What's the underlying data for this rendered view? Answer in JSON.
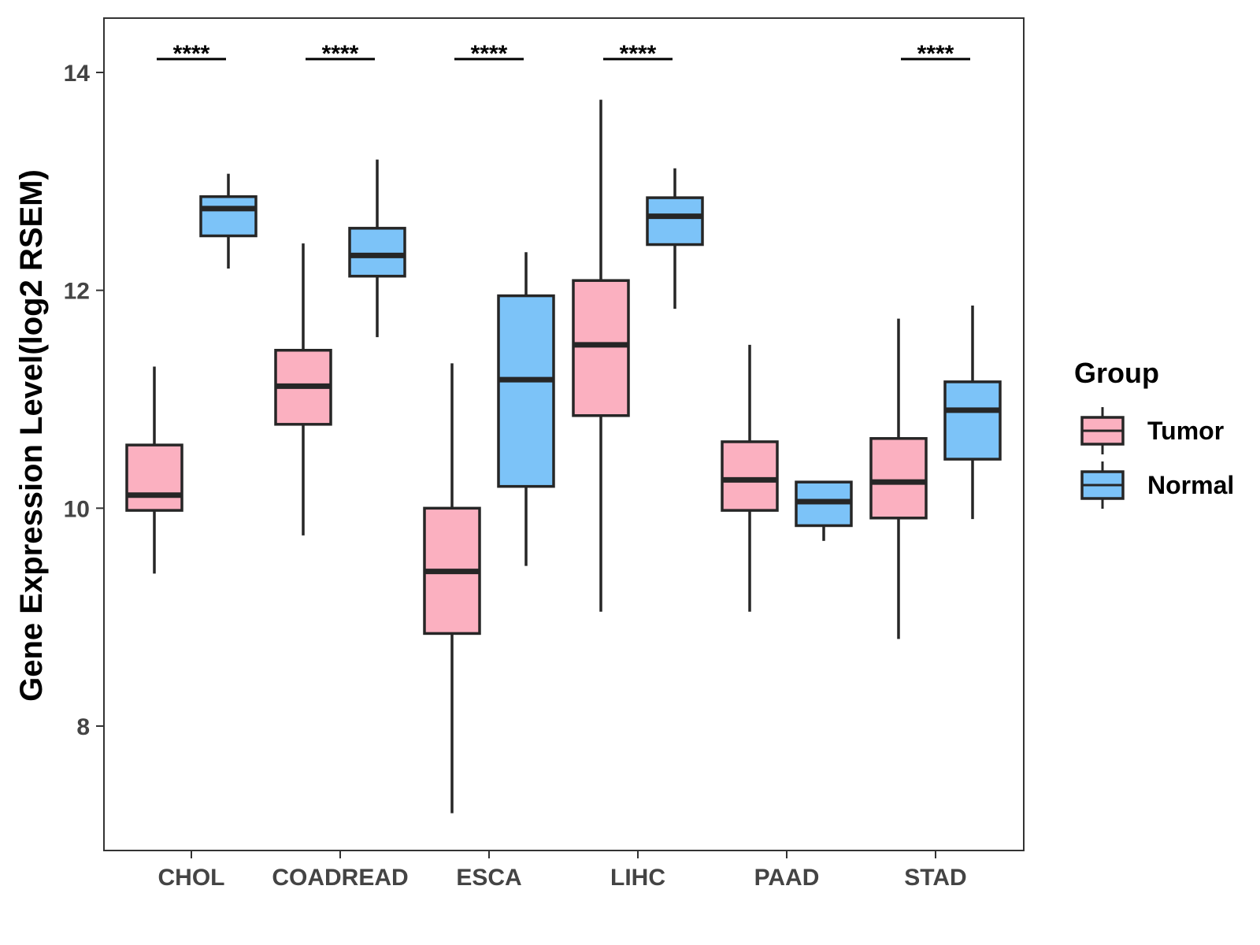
{
  "chart_data": {
    "type": "boxplot",
    "title": "",
    "xlabel": "",
    "ylabel": "Gene Expression Level(log2 RSEM)",
    "ylim": [
      6.9,
      14.5
    ],
    "yticks": [
      8,
      10,
      12,
      14
    ],
    "categories": [
      "CHOL",
      "COADREAD",
      "ESCA",
      "LIHC",
      "PAAD",
      "STAD"
    ],
    "grid": false,
    "legend": {
      "title": "Group",
      "placement": "right",
      "entries": [
        {
          "name": "Tumor",
          "color": "#fbb0c0"
        },
        {
          "name": "Normal",
          "color": "#7cc3f8"
        }
      ]
    },
    "series": [
      {
        "name": "Tumor",
        "color": "#fbb0c0",
        "boxes": [
          {
            "category": "CHOL",
            "min": 9.4,
            "q1": 9.98,
            "median": 10.12,
            "q3": 10.58,
            "max": 11.3
          },
          {
            "category": "COADREAD",
            "min": 9.75,
            "q1": 10.77,
            "median": 11.12,
            "q3": 11.45,
            "max": 12.43
          },
          {
            "category": "ESCA",
            "min": 7.2,
            "q1": 8.85,
            "median": 9.42,
            "q3": 10.0,
            "max": 11.33
          },
          {
            "category": "LIHC",
            "min": 9.05,
            "q1": 10.85,
            "median": 11.5,
            "q3": 12.09,
            "max": 13.75
          },
          {
            "category": "PAAD",
            "min": 9.05,
            "q1": 9.98,
            "median": 10.26,
            "q3": 10.61,
            "max": 11.5
          },
          {
            "category": "STAD",
            "min": 8.8,
            "q1": 9.91,
            "median": 10.24,
            "q3": 10.64,
            "max": 11.74
          }
        ]
      },
      {
        "name": "Normal",
        "color": "#7cc3f8",
        "boxes": [
          {
            "category": "CHOL",
            "min": 12.2,
            "q1": 12.5,
            "median": 12.75,
            "q3": 12.86,
            "max": 13.07
          },
          {
            "category": "COADREAD",
            "min": 11.57,
            "q1": 12.13,
            "median": 12.32,
            "q3": 12.57,
            "max": 13.2
          },
          {
            "category": "ESCA",
            "min": 9.47,
            "q1": 10.2,
            "median": 11.18,
            "q3": 11.95,
            "max": 12.35
          },
          {
            "category": "LIHC",
            "min": 11.83,
            "q1": 12.42,
            "median": 12.68,
            "q3": 12.85,
            "max": 13.12
          },
          {
            "category": "PAAD",
            "min": 9.7,
            "q1": 9.84,
            "median": 10.06,
            "q3": 10.24,
            "max": 10.24
          },
          {
            "category": "STAD",
            "min": 9.9,
            "q1": 10.45,
            "median": 10.9,
            "q3": 11.16,
            "max": 11.86
          }
        ]
      }
    ],
    "significance": [
      {
        "category": "CHOL",
        "label": "****"
      },
      {
        "category": "COADREAD",
        "label": "****"
      },
      {
        "category": "ESCA",
        "label": "****"
      },
      {
        "category": "LIHC",
        "label": "****"
      },
      {
        "category": "PAAD",
        "label": ""
      },
      {
        "category": "STAD",
        "label": "****"
      }
    ]
  }
}
